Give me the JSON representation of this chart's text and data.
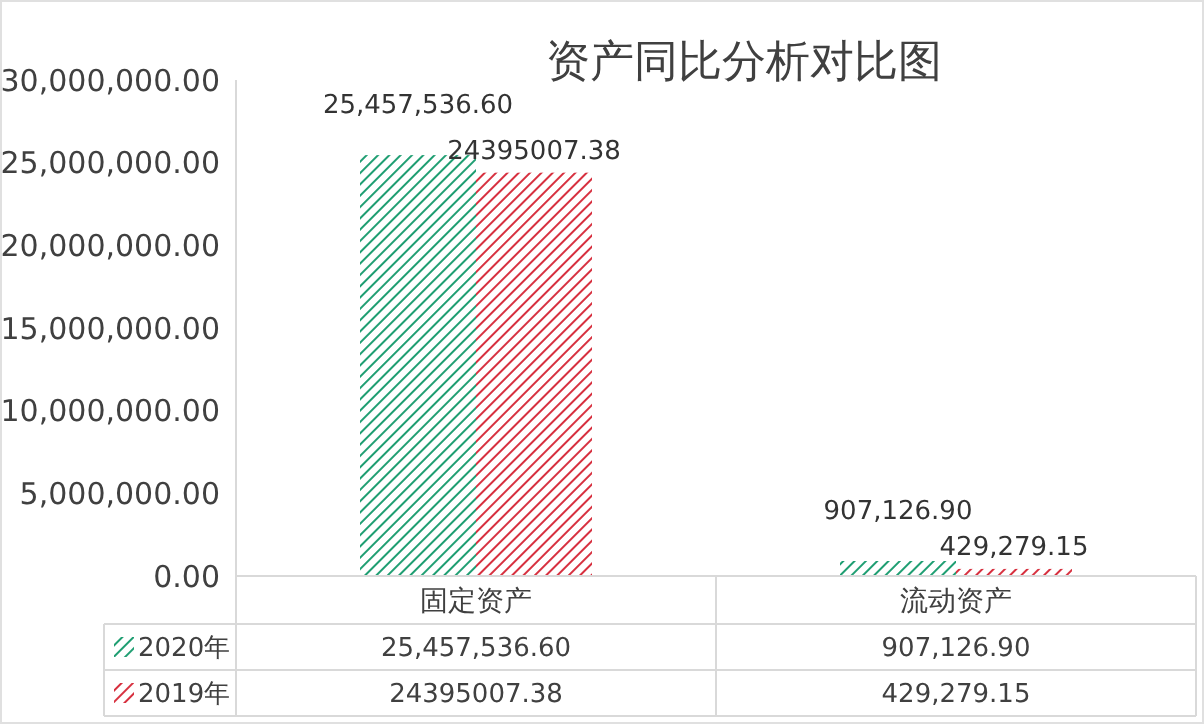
{
  "chart_data": {
    "type": "bar",
    "title": "资产同比分析对比图",
    "categories": [
      "固定资产",
      "流动资产"
    ],
    "series": [
      {
        "name": "2020年",
        "color": "#1f9e72",
        "values": [
          25457536.6,
          907126.9
        ],
        "value_labels": [
          "25,457,536.60",
          "907,126.90"
        ]
      },
      {
        "name": "2019年",
        "color": "#d7303f",
        "values": [
          24395007.38,
          429279.15
        ],
        "value_labels": [
          "24395007.38",
          "429,279.15"
        ]
      }
    ],
    "ylim": [
      0,
      30000000
    ],
    "yticks": [
      {
        "value": 0,
        "label": "0.00"
      },
      {
        "value": 5000000,
        "label": "5,000,000.00"
      },
      {
        "value": 10000000,
        "label": "10,000,000.00"
      },
      {
        "value": 15000000,
        "label": "15,000,000.00"
      },
      {
        "value": 20000000,
        "label": "20,000,000.00"
      },
      {
        "value": 25000000,
        "label": "25,000,000.00"
      },
      {
        "value": 30000000,
        "label": "30,000,000.00"
      }
    ],
    "grid": false,
    "legend": "bottom"
  }
}
